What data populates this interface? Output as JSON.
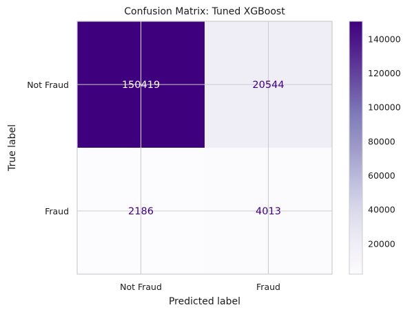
{
  "chart_data": {
    "type": "heatmap",
    "title": "Confusion Matrix: Tuned XGBoost",
    "xlabel": "Predicted label",
    "ylabel": "True label",
    "x_categories": [
      "Not Fraud",
      "Fraud"
    ],
    "y_categories": [
      "Not Fraud",
      "Fraud"
    ],
    "values": [
      [
        150419,
        20544
      ],
      [
        2186,
        4013
      ]
    ],
    "colormap": "Purples",
    "colorbar": {
      "min": 2186,
      "max": 150419,
      "ticks": [
        20000,
        40000,
        60000,
        80000,
        100000,
        120000,
        140000
      ],
      "tick_labels": [
        "20000",
        "40000",
        "60000",
        "80000",
        "100000",
        "120000",
        "140000"
      ]
    },
    "grid": true,
    "text_colors": {
      "on_light": "#3f007d",
      "on_dark": "#ffffff"
    }
  }
}
